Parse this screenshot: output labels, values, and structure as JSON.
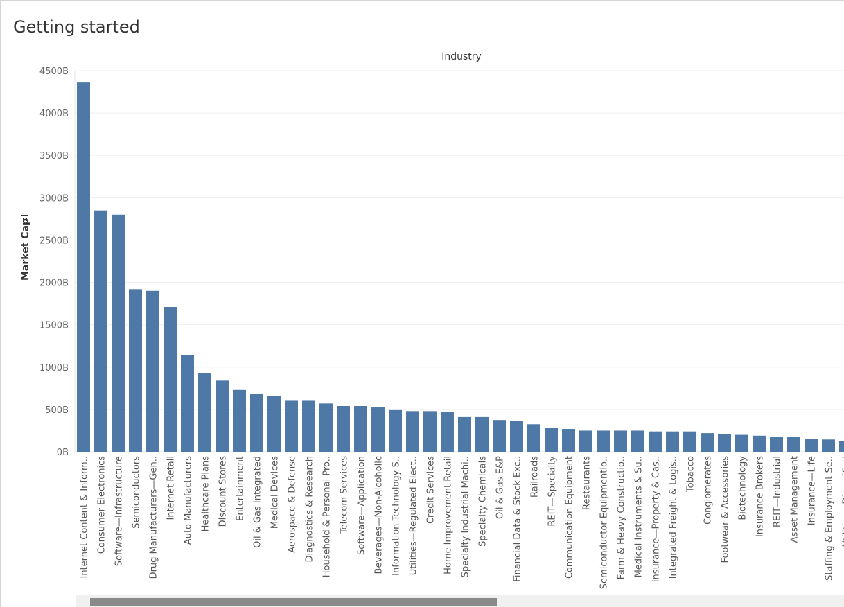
{
  "page": {
    "title": "Getting started"
  },
  "colors": {
    "bar": "#4e79a7",
    "gridline": "#efefef",
    "axis_text": "#666666"
  },
  "icons": {
    "sort_icon": "sort-descending-icon"
  },
  "chart_data": {
    "type": "bar",
    "title": "Industry",
    "xlabel": "",
    "ylabel": "Market Cap",
    "ylim": [
      0,
      4500
    ],
    "yticks": [
      "0B",
      "500B",
      "1000B",
      "1500B",
      "2000B",
      "2500B",
      "3000B",
      "3500B",
      "4000B",
      "4500B"
    ],
    "grid": true,
    "value_unit": "B",
    "categories": [
      "Internet Content & Inform..",
      "Consumer Electronics",
      "Software—Infrastructure",
      "Semiconductors",
      "Drug Manufacturers—Gen..",
      "Internet Retail",
      "Auto Manufacturers",
      "Healthcare Plans",
      "Discount Stores",
      "Entertainment",
      "Oil & Gas Integrated",
      "Medical Devices",
      "Aerospace & Defense",
      "Diagnostics & Research",
      "Household & Personal Pro..",
      "Telecom Services",
      "Software—Application",
      "Beverages—Non-Alcoholic",
      "Information Technology S..",
      "Utilities—Regulated Elect..",
      "Credit Services",
      "Home Improvement Retail",
      "Specialty Industrial Machi..",
      "Specialty Chemicals",
      "Oil & Gas E&P",
      "Financial Data & Stock Exc..",
      "Railroads",
      "REIT—Specialty",
      "Communication Equipment",
      "Restaurants",
      "Semiconductor Equipmentio..",
      "Farm & Heavy Constructio..",
      "Medical Instruments & Su..",
      "Insurance—Property & Cas..",
      "Integrated Freight & Logis..",
      "Tobacco",
      "Conglomerates",
      "Footwear & Accessories",
      "Biotechnology",
      "Insurance Brokers",
      "REIT—Industrial",
      "Asset Management",
      "Insurance—Life",
      "Staffing & Employment Se..",
      "Utilities—Diversified"
    ],
    "values": [
      4360,
      2850,
      2800,
      1920,
      1900,
      1710,
      1140,
      930,
      840,
      730,
      680,
      660,
      610,
      610,
      570,
      540,
      540,
      530,
      500,
      480,
      480,
      470,
      410,
      410,
      375,
      365,
      325,
      285,
      270,
      250,
      250,
      250,
      250,
      240,
      240,
      240,
      220,
      210,
      200,
      190,
      180,
      180,
      155,
      145,
      130
    ]
  }
}
